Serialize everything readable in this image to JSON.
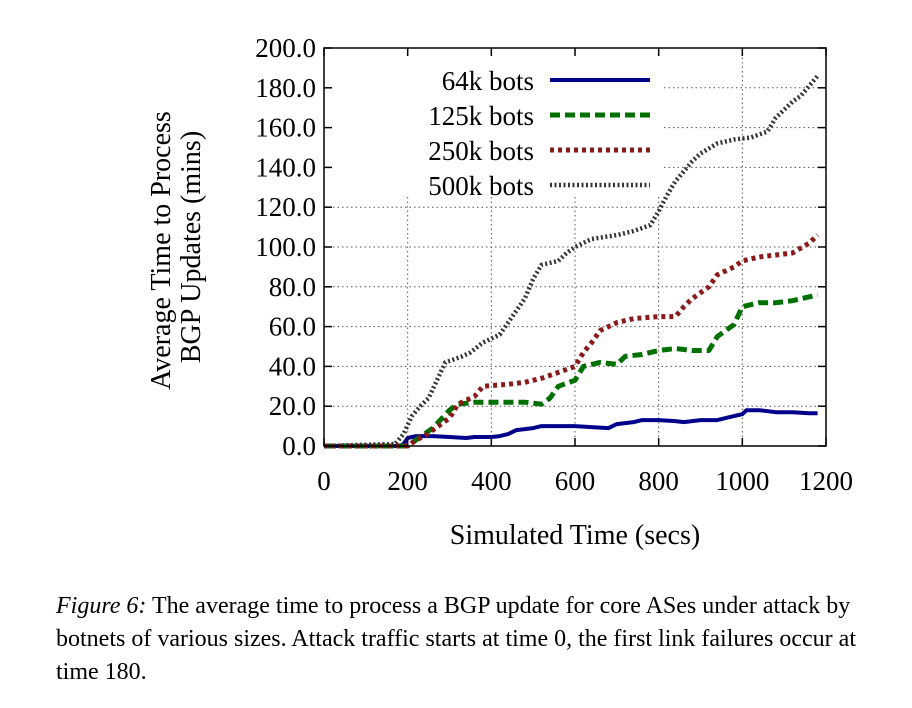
{
  "chart_data": {
    "type": "line",
    "title": "",
    "xlabel": "Simulated Time (secs)",
    "ylabel_lines": [
      "Average Time to Process",
      "BGP Updates (mins)"
    ],
    "xlim": [
      0,
      1200
    ],
    "ylim": [
      0,
      200
    ],
    "x_ticks": [
      0,
      200,
      400,
      600,
      800,
      1000,
      1200
    ],
    "x_tick_labels": [
      "0",
      "200",
      "400",
      "600",
      "800",
      "1000",
      "1200"
    ],
    "y_ticks": [
      0,
      20,
      40,
      60,
      80,
      100,
      120,
      140,
      160,
      180,
      200
    ],
    "y_tick_labels": [
      "0.0",
      "20.0",
      "40.0",
      "60.0",
      "80.0",
      "100.0",
      "120.0",
      "140.0",
      "160.0",
      "180.0",
      "200.0"
    ],
    "grid": true,
    "legend_position": "top-left",
    "series": [
      {
        "name": "64k bots",
        "color": "#00008b",
        "style": "solid",
        "points": [
          [
            0,
            0
          ],
          [
            180,
            0
          ],
          [
            190,
            1
          ],
          [
            200,
            4
          ],
          [
            220,
            5
          ],
          [
            260,
            5
          ],
          [
            300,
            4.5
          ],
          [
            340,
            4
          ],
          [
            360,
            4.5
          ],
          [
            400,
            4.5
          ],
          [
            420,
            5
          ],
          [
            440,
            6
          ],
          [
            460,
            8
          ],
          [
            500,
            9
          ],
          [
            520,
            10
          ],
          [
            560,
            10
          ],
          [
            600,
            10
          ],
          [
            640,
            9.5
          ],
          [
            680,
            9
          ],
          [
            700,
            11
          ],
          [
            740,
            12
          ],
          [
            760,
            13
          ],
          [
            800,
            13
          ],
          [
            840,
            12.5
          ],
          [
            860,
            12
          ],
          [
            900,
            13
          ],
          [
            940,
            13
          ],
          [
            960,
            14
          ],
          [
            980,
            15
          ],
          [
            1000,
            16
          ],
          [
            1010,
            18
          ],
          [
            1040,
            18
          ],
          [
            1080,
            17
          ],
          [
            1120,
            17
          ],
          [
            1160,
            16.5
          ],
          [
            1180,
            16.5
          ]
        ]
      },
      {
        "name": "125k bots",
        "color": "#007000",
        "style": "dashed",
        "points": [
          [
            0,
            0
          ],
          [
            200,
            0
          ],
          [
            220,
            3
          ],
          [
            260,
            9
          ],
          [
            300,
            18
          ],
          [
            320,
            21
          ],
          [
            360,
            22
          ],
          [
            400,
            22
          ],
          [
            440,
            22
          ],
          [
            480,
            22
          ],
          [
            520,
            21
          ],
          [
            540,
            24
          ],
          [
            560,
            30
          ],
          [
            600,
            33
          ],
          [
            620,
            40
          ],
          [
            660,
            42
          ],
          [
            700,
            41
          ],
          [
            720,
            45
          ],
          [
            760,
            46
          ],
          [
            800,
            48
          ],
          [
            840,
            49
          ],
          [
            880,
            48
          ],
          [
            920,
            48
          ],
          [
            940,
            55
          ],
          [
            980,
            61
          ],
          [
            1000,
            70
          ],
          [
            1040,
            72
          ],
          [
            1080,
            72
          ],
          [
            1120,
            73
          ],
          [
            1160,
            75
          ],
          [
            1180,
            76
          ]
        ]
      },
      {
        "name": "250k bots",
        "color": "#8b1a1a",
        "style": "dotted",
        "points": [
          [
            0,
            0
          ],
          [
            200,
            0
          ],
          [
            220,
            3
          ],
          [
            240,
            5
          ],
          [
            260,
            8
          ],
          [
            300,
            14
          ],
          [
            320,
            21
          ],
          [
            360,
            25
          ],
          [
            380,
            30
          ],
          [
            440,
            31
          ],
          [
            480,
            32
          ],
          [
            520,
            34
          ],
          [
            560,
            37
          ],
          [
            600,
            40
          ],
          [
            620,
            47
          ],
          [
            640,
            52
          ],
          [
            660,
            58
          ],
          [
            700,
            62
          ],
          [
            740,
            64
          ],
          [
            800,
            65
          ],
          [
            840,
            65
          ],
          [
            860,
            70
          ],
          [
            880,
            74
          ],
          [
            920,
            80
          ],
          [
            940,
            86
          ],
          [
            980,
            90
          ],
          [
            1000,
            93
          ],
          [
            1040,
            95
          ],
          [
            1080,
            96
          ],
          [
            1120,
            97
          ],
          [
            1160,
            102
          ],
          [
            1180,
            106
          ]
        ]
      },
      {
        "name": "500k bots",
        "color": "#333333",
        "style": "finedotted",
        "points": [
          [
            0,
            0
          ],
          [
            170,
            1
          ],
          [
            190,
            6
          ],
          [
            210,
            15
          ],
          [
            230,
            20
          ],
          [
            250,
            24
          ],
          [
            270,
            33
          ],
          [
            290,
            42
          ],
          [
            330,
            45
          ],
          [
            350,
            47
          ],
          [
            380,
            52
          ],
          [
            420,
            56
          ],
          [
            440,
            62
          ],
          [
            460,
            68
          ],
          [
            480,
            74
          ],
          [
            500,
            84
          ],
          [
            520,
            91
          ],
          [
            560,
            93
          ],
          [
            580,
            97
          ],
          [
            600,
            100
          ],
          [
            640,
            104
          ],
          [
            700,
            106
          ],
          [
            740,
            108
          ],
          [
            780,
            111
          ],
          [
            800,
            118
          ],
          [
            820,
            126
          ],
          [
            840,
            133
          ],
          [
            860,
            138
          ],
          [
            880,
            143
          ],
          [
            900,
            147
          ],
          [
            940,
            152
          ],
          [
            980,
            154
          ],
          [
            1020,
            155
          ],
          [
            1060,
            158
          ],
          [
            1080,
            165
          ],
          [
            1100,
            169
          ],
          [
            1120,
            173
          ],
          [
            1140,
            176
          ],
          [
            1160,
            181
          ],
          [
            1180,
            186
          ]
        ]
      }
    ]
  },
  "caption": {
    "label": "Figure 6:",
    "text": " The average time to process a BGP update for core ASes under attack by botnets of various sizes. Attack traffic starts at time 0, the first link failures occur at time 180."
  }
}
